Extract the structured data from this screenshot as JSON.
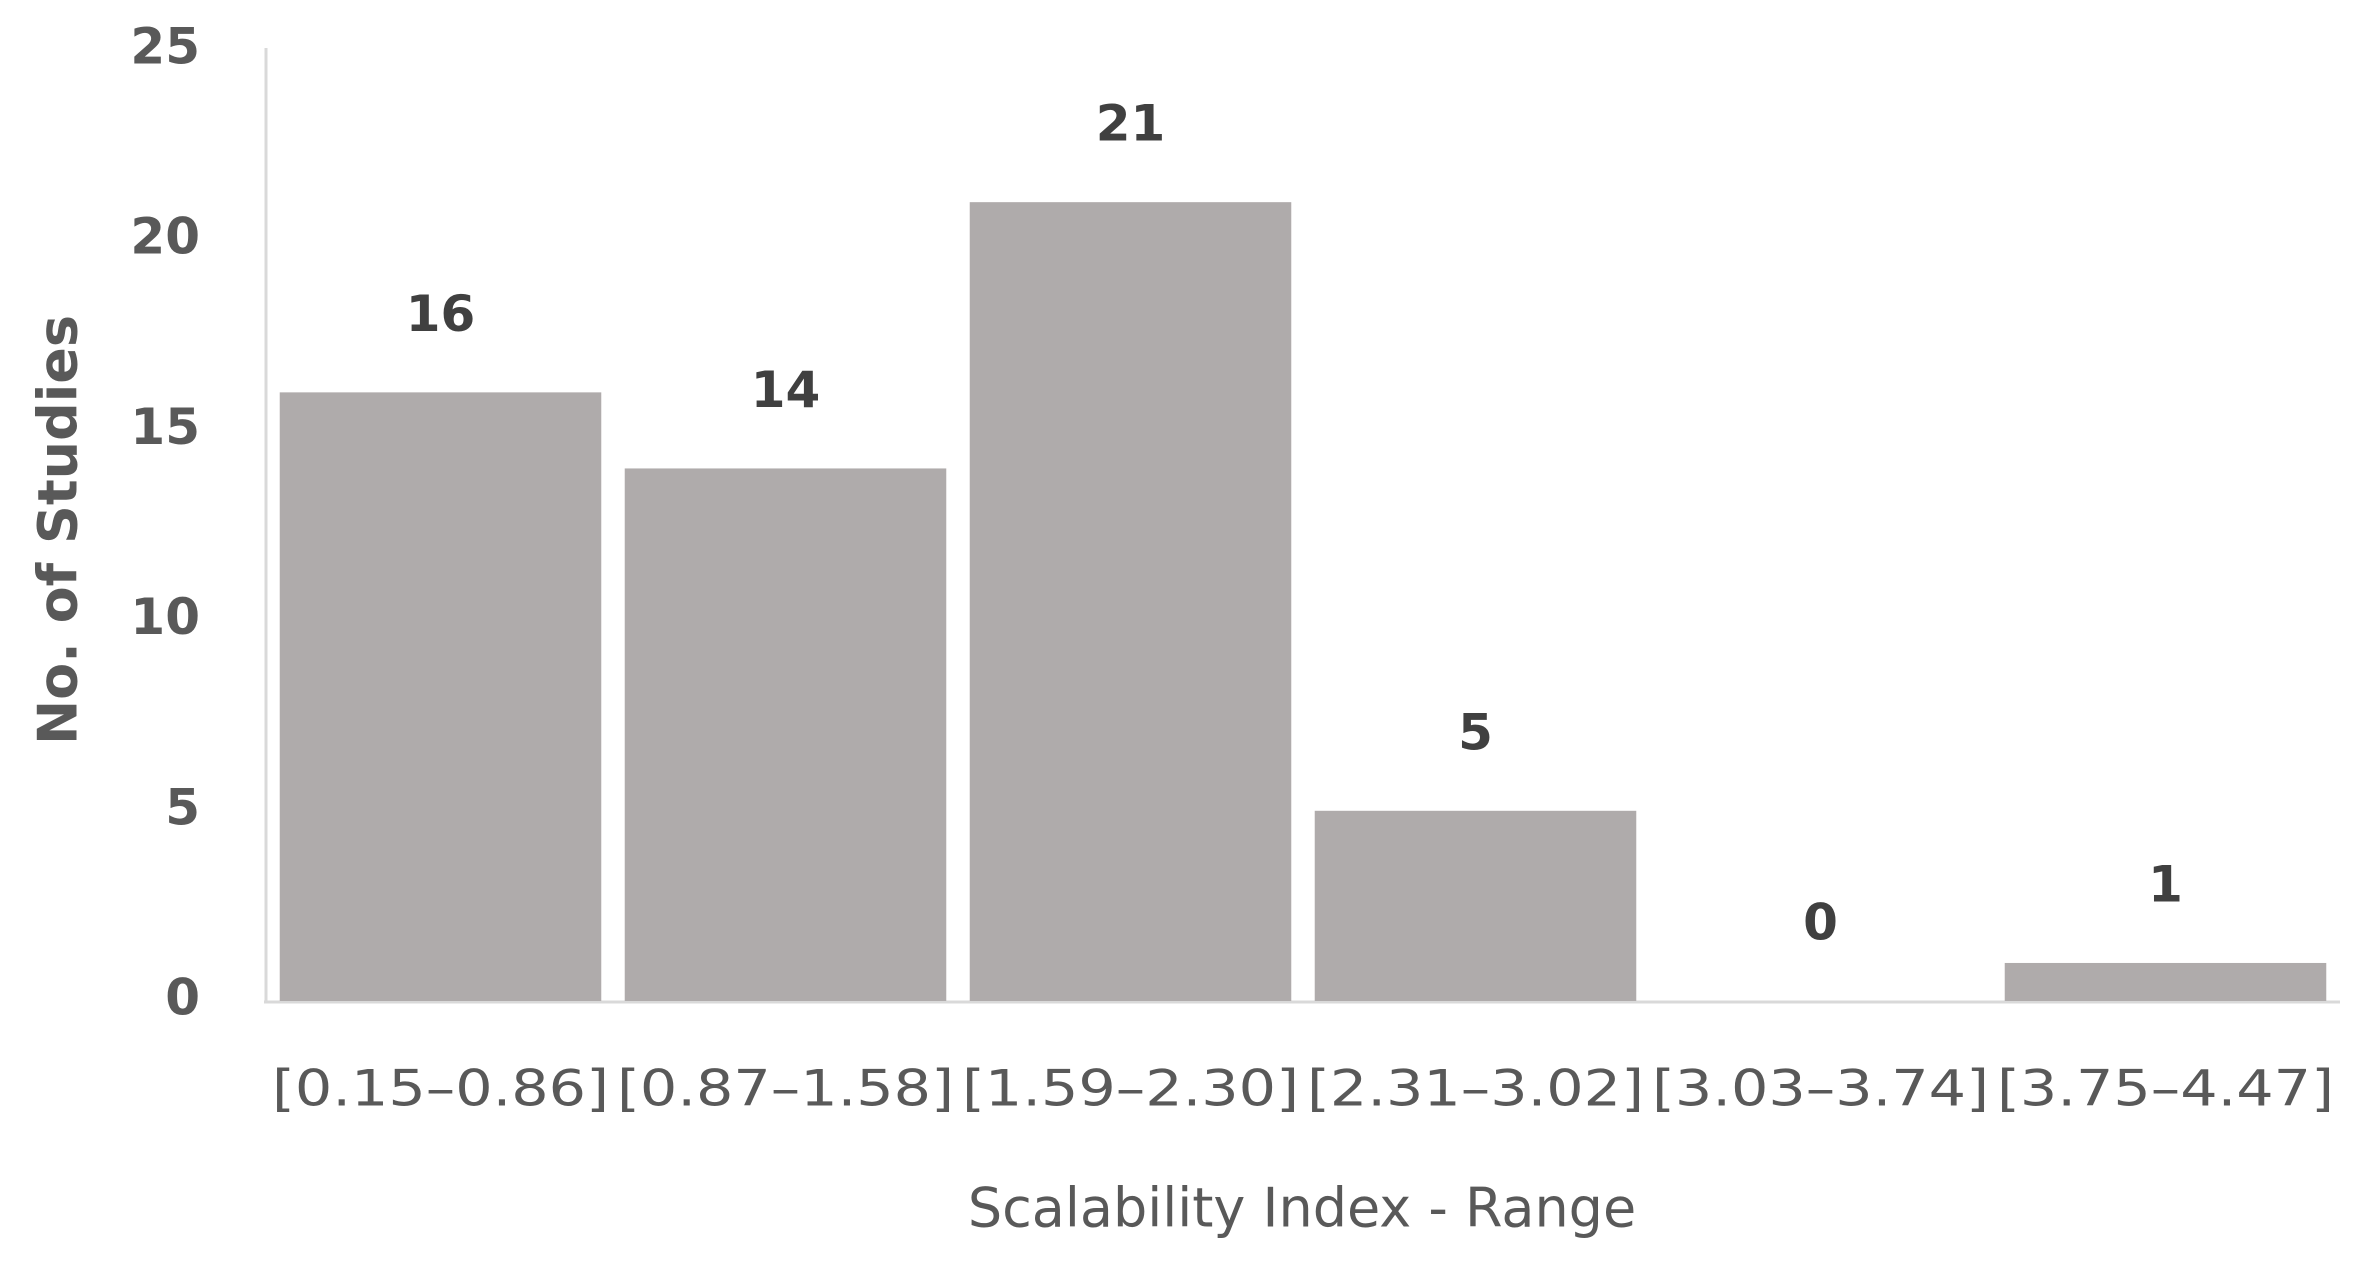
{
  "chart_data": {
    "type": "bar",
    "x_label": "Scalability Index - Range",
    "y_label": "No. of Studies",
    "categories": [
      "[0.15–0.86]",
      "[0.87–1.58]",
      "[1.59–2.30]",
      "[2.31–3.02]",
      "[3.03–3.74]",
      "[3.75–4.47]"
    ],
    "values": [
      16,
      14,
      21,
      5,
      0,
      1
    ],
    "color": "#afabab",
    "ylim": [
      0,
      25
    ],
    "yticks": [
      0,
      5,
      10,
      15,
      20,
      25
    ],
    "grid": false
  }
}
